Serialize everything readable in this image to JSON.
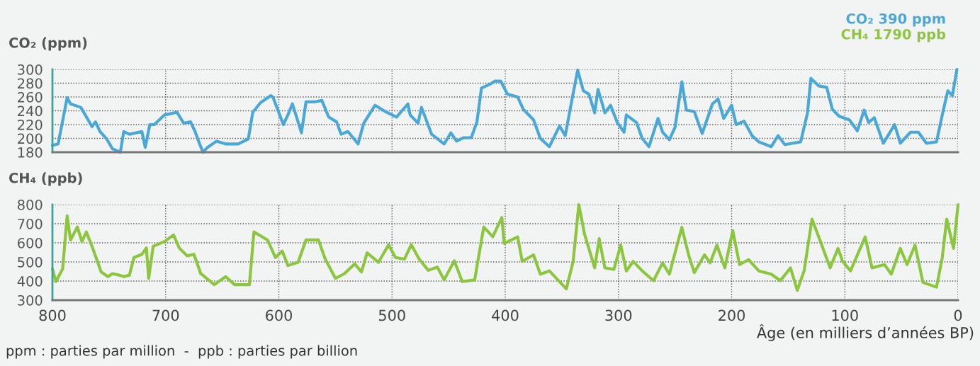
{
  "chart_data": [
    {
      "type": "line",
      "ylabel": "CO₂ (ppm)",
      "xlim": [
        800,
        0
      ],
      "xticks": [
        800,
        700,
        600,
        500,
        400,
        300,
        200,
        100,
        0
      ],
      "ylim": [
        180,
        300
      ],
      "yticks": [
        180,
        200,
        220,
        240,
        260,
        280,
        300
      ],
      "grid": true,
      "tick_labels": "y",
      "annotations": [
        "CO₂ 390 ppm"
      ],
      "series": [
        {
          "color": "#4aa8d8",
          "x": [
            800,
            795,
            787,
            784,
            775,
            771,
            765,
            762,
            758,
            752,
            747,
            740,
            737,
            732,
            721,
            718,
            714,
            710,
            701,
            695,
            690,
            684,
            678,
            674,
            670,
            667,
            663,
            655,
            647,
            636,
            627,
            623,
            616,
            607,
            605,
            596,
            592,
            588,
            580,
            576,
            568,
            562,
            556,
            549,
            545,
            539,
            530,
            525,
            515,
            505,
            496,
            486,
            484,
            477,
            474,
            465,
            454,
            448,
            443,
            437,
            430,
            425,
            421,
            414,
            409,
            404,
            398,
            389,
            384,
            375,
            369,
            361,
            352,
            347,
            342,
            336,
            331,
            326,
            321,
            318,
            312,
            307,
            301,
            295,
            293,
            284,
            279,
            273,
            265,
            261,
            255,
            250,
            244,
            240,
            233,
            226,
            217,
            212,
            207,
            200,
            196,
            189,
            182,
            176,
            165,
            159,
            153,
            139,
            133,
            130,
            123,
            116,
            111,
            105,
            96,
            89,
            83,
            79,
            74,
            66,
            56,
            51,
            42,
            35,
            28,
            19,
            13,
            9,
            5,
            1
          ],
          "values": [
            190,
            192,
            259,
            250,
            245,
            234,
            217,
            224,
            210,
            199,
            185,
            180,
            210,
            206,
            210,
            187,
            220,
            220,
            234,
            236,
            238,
            222,
            224,
            210,
            192,
            180,
            187,
            196,
            192,
            192,
            199,
            238,
            252,
            262,
            259,
            220,
            234,
            250,
            208,
            253,
            253,
            255,
            231,
            224,
            206,
            210,
            192,
            222,
            248,
            238,
            231,
            250,
            234,
            222,
            245,
            206,
            192,
            208,
            196,
            201,
            201,
            224,
            273,
            278,
            283,
            283,
            264,
            260,
            242,
            227,
            200,
            188,
            218,
            204,
            248,
            299,
            269,
            264,
            237,
            271,
            237,
            248,
            223,
            209,
            234,
            223,
            200,
            188,
            229,
            209,
            198,
            216,
            282,
            241,
            239,
            207,
            250,
            257,
            229,
            248,
            220,
            225,
            204,
            195,
            188,
            204,
            191,
            195,
            237,
            287,
            276,
            274,
            242,
            232,
            227,
            211,
            241,
            223,
            230,
            193,
            220,
            193,
            209,
            209,
            193,
            195,
            241,
            269,
            262,
            300
          ]
        }
      ]
    },
    {
      "type": "line",
      "ylabel": "CH₄ (ppb)",
      "xlabel": "Âge (en milliers d’années BP)",
      "xlim": [
        800,
        0
      ],
      "xticks": [
        800,
        700,
        600,
        500,
        400,
        300,
        200,
        100,
        0
      ],
      "ylim": [
        300,
        800
      ],
      "yticks": [
        300,
        400,
        500,
        600,
        700,
        800
      ],
      "grid": true,
      "annotations": [
        "CH₄ 1790 ppb",
        "ppm : parties par million  -  ppb : parties par billion"
      ],
      "series": [
        {
          "color": "#8cc63f",
          "x": [
            800,
            797,
            791,
            787,
            784,
            778,
            774,
            770,
            764,
            761,
            757,
            751,
            747,
            741,
            737,
            732,
            728,
            721,
            717,
            715,
            711,
            701,
            693,
            688,
            681,
            675,
            669,
            657,
            647,
            639,
            626,
            622,
            610,
            603,
            597,
            592,
            583,
            576,
            565,
            559,
            550,
            542,
            533,
            527,
            522,
            512,
            503,
            497,
            489,
            483,
            476,
            468,
            460,
            454,
            445,
            438,
            427,
            419,
            411,
            403,
            401,
            389,
            385,
            375,
            369,
            361,
            346,
            340,
            335,
            330,
            321,
            317,
            312,
            304,
            298,
            293,
            287,
            279,
            269,
            261,
            255,
            244,
            238,
            233,
            224,
            219,
            213,
            206,
            199,
            193,
            185,
            176,
            165,
            157,
            148,
            142,
            136,
            129,
            122,
            113,
            106,
            102,
            95,
            82,
            76,
            65,
            59,
            51,
            45,
            38,
            31,
            19,
            14,
            10,
            4,
            0
          ],
          "values": [
            464,
            397,
            464,
            741,
            615,
            683,
            607,
            657,
            565,
            515,
            448,
            423,
            439,
            431,
            423,
            431,
            523,
            540,
            573,
            414,
            582,
            607,
            641,
            573,
            532,
            540,
            439,
            381,
            423,
            381,
            381,
            657,
            615,
            523,
            557,
            481,
            498,
            615,
            615,
            515,
            414,
            439,
            490,
            448,
            548,
            498,
            590,
            523,
            515,
            590,
            515,
            456,
            473,
            406,
            506,
            397,
            406,
            683,
            632,
            733,
            597,
            631,
            503,
            537,
            436,
            453,
            359,
            503,
            800,
            647,
            469,
            622,
            469,
            461,
            588,
            453,
            503,
            453,
            402,
            495,
            436,
            681,
            537,
            444,
            537,
            495,
            588,
            469,
            664,
            486,
            512,
            453,
            436,
            402,
            469,
            351,
            453,
            724,
            614,
            469,
            571,
            503,
            453,
            631,
            469,
            486,
            436,
            571,
            486,
            588,
            393,
            368,
            520,
            724,
            571,
            800
          ]
        }
      ]
    }
  ]
}
